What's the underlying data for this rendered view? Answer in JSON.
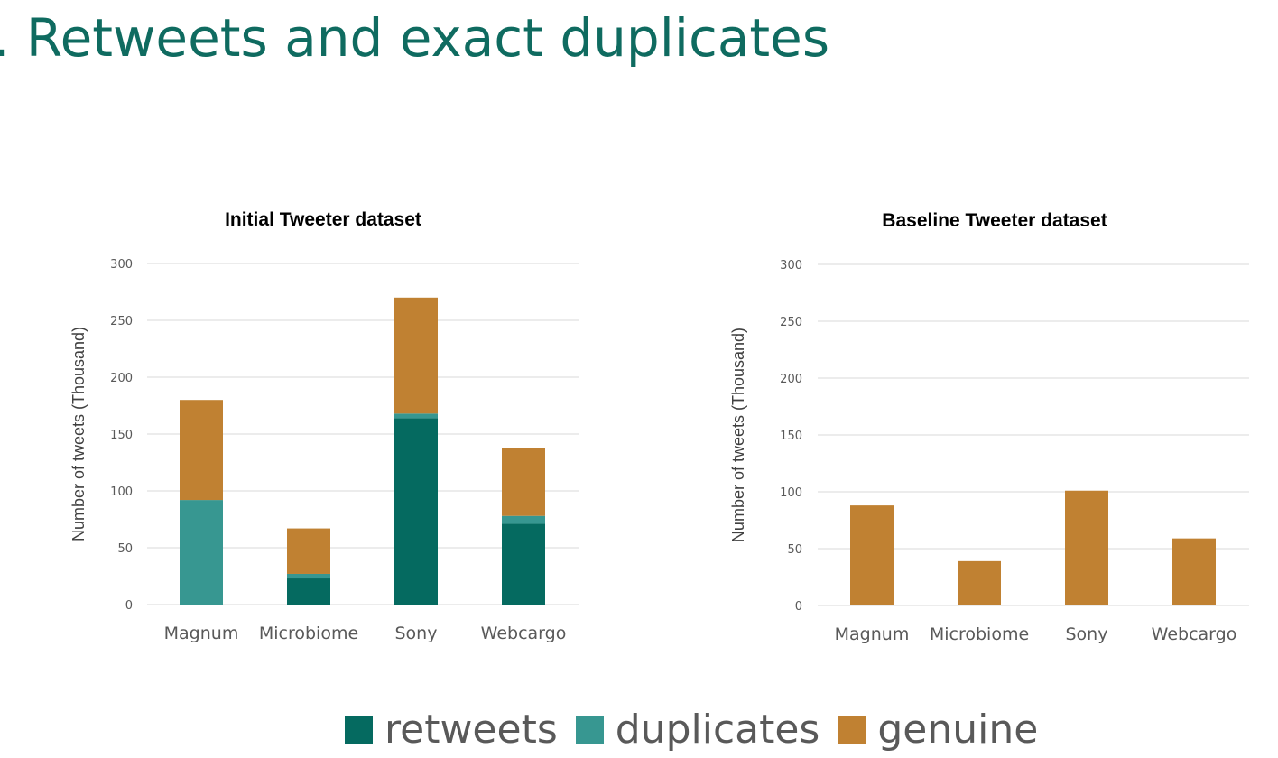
{
  "slide": {
    "title": ". Retweets and exact duplicates"
  },
  "colors": {
    "title": "#0f6b60",
    "retweets": "#056a60",
    "duplicates": "#379791",
    "genuine": "#c08132",
    "gridline": "#d9d9d9",
    "tick_text": "#595959",
    "axis_label": "#404040"
  },
  "legend": [
    {
      "label": "retweets",
      "color": "#056a60"
    },
    {
      "label": "duplicates",
      "color": "#379791"
    },
    {
      "label": "genuine",
      "color": "#c08132"
    }
  ],
  "chart_data": [
    {
      "type": "bar",
      "stacked": true,
      "title": "Initial Tweeter dataset",
      "xlabel": "",
      "ylabel": "Number of tweets (Thousand)",
      "ylim": [
        0,
        300
      ],
      "yticks": [
        0,
        50,
        100,
        150,
        200,
        250,
        300
      ],
      "grid": true,
      "categories": [
        "Magnum",
        "Microbiome",
        "Sony",
        "Webcargo"
      ],
      "series": [
        {
          "name": "retweets",
          "values": [
            0,
            23,
            164,
            71
          ]
        },
        {
          "name": "duplicates",
          "values": [
            92,
            4,
            4,
            7
          ]
        },
        {
          "name": "genuine",
          "values": [
            88,
            40,
            102,
            60
          ]
        }
      ]
    },
    {
      "type": "bar",
      "stacked": false,
      "title": "Baseline Tweeter dataset",
      "xlabel": "",
      "ylabel": "Number of tweets (Thousand)",
      "ylim": [
        0,
        300
      ],
      "yticks": [
        0,
        50,
        100,
        150,
        200,
        250,
        300
      ],
      "grid": true,
      "categories": [
        "Magnum",
        "Microbiome",
        "Sony",
        "Webcargo"
      ],
      "series": [
        {
          "name": "genuine",
          "values": [
            88,
            39,
            101,
            59
          ]
        }
      ]
    }
  ]
}
